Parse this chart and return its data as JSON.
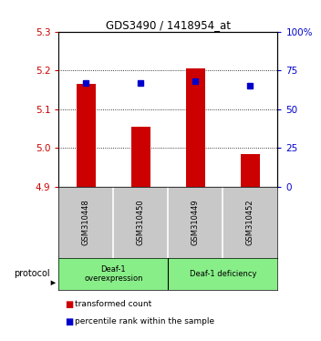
{
  "title": "GDS3490 / 1418954_at",
  "samples": [
    "GSM310448",
    "GSM310450",
    "GSM310449",
    "GSM310452"
  ],
  "bar_values": [
    5.165,
    5.055,
    5.205,
    4.985
  ],
  "bar_baseline": 4.9,
  "percentile_values": [
    67,
    67,
    68,
    65
  ],
  "ylim_left": [
    4.9,
    5.3
  ],
  "ylim_right": [
    0,
    100
  ],
  "yticks_left": [
    4.9,
    5.0,
    5.1,
    5.2,
    5.3
  ],
  "yticks_right": [
    0,
    25,
    50,
    75,
    100
  ],
  "ytick_labels_right": [
    "0",
    "25",
    "50",
    "75",
    "100%"
  ],
  "bar_color": "#cc0000",
  "blue_color": "#0000cc",
  "group1_label": "Deaf-1\noverexpression",
  "group2_label": "Deaf-1 deficiency",
  "group1_samples": [
    0,
    1
  ],
  "group2_samples": [
    2,
    3
  ],
  "group_color": "#88ee88",
  "tick_bg_color": "#c8c8c8",
  "protocol_label": "protocol",
  "legend_red_label": "transformed count",
  "legend_blue_label": "percentile rank within the sample",
  "bar_width": 0.35
}
